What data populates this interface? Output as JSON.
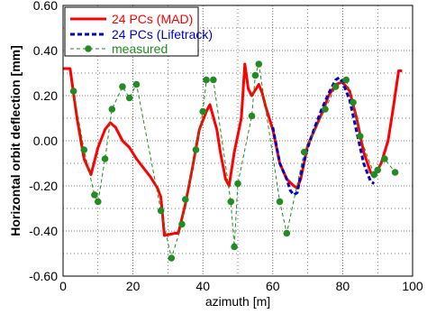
{
  "chart_data": {
    "type": "line",
    "xlabel": "azimuth [m]",
    "ylabel": "Horizontal orbit deflection [mm]",
    "xlim": [
      0,
      100
    ],
    "ylim": [
      -0.6,
      0.6
    ],
    "x_ticks": [
      "0",
      "20",
      "40",
      "60",
      "80",
      "100"
    ],
    "y_ticks": [
      "0.60",
      "0.40",
      "0.20",
      "0.00",
      "-0.20",
      "-0.40",
      "-0.60"
    ],
    "x_tick_values": [
      0,
      20,
      40,
      60,
      80,
      100
    ],
    "y_tick_values": [
      0.6,
      0.4,
      0.2,
      0.0,
      -0.2,
      -0.4,
      -0.6
    ],
    "grid": "dotted",
    "legend_position": "top-left",
    "series": [
      {
        "name": "24 PCs (MAD)",
        "color": "#ff0000",
        "style": "solid",
        "points": [
          [
            0,
            0.32
          ],
          [
            2,
            0.32
          ],
          [
            4,
            0.1
          ],
          [
            6,
            -0.08
          ],
          [
            8,
            -0.15
          ],
          [
            10,
            -0.03
          ],
          [
            12,
            0.05
          ],
          [
            13.5,
            0.08
          ],
          [
            15,
            0.06
          ],
          [
            17,
            0.0
          ],
          [
            19,
            -0.03
          ],
          [
            21,
            -0.08
          ],
          [
            23,
            -0.12
          ],
          [
            25,
            -0.16
          ],
          [
            27,
            -0.21
          ],
          [
            28,
            -0.25
          ],
          [
            29,
            -0.42
          ],
          [
            32,
            -0.41
          ],
          [
            33,
            -0.41
          ],
          [
            35,
            -0.28
          ],
          [
            37,
            -0.12
          ],
          [
            39,
            0.05
          ],
          [
            41,
            0.13
          ],
          [
            42,
            0.16
          ],
          [
            44,
            0.05
          ],
          [
            45,
            -0.05
          ],
          [
            46.5,
            -0.17
          ],
          [
            47.5,
            -0.2
          ],
          [
            49,
            -0.05
          ],
          [
            51,
            0.1
          ],
          [
            52,
            0.34
          ],
          [
            53,
            0.23
          ],
          [
            54,
            0.2
          ],
          [
            56,
            0.25
          ],
          [
            57,
            0.21
          ],
          [
            58,
            0.15
          ],
          [
            60,
            0.05
          ],
          [
            62,
            -0.1
          ],
          [
            64,
            -0.17
          ],
          [
            66,
            -0.2
          ],
          [
            67,
            -0.21
          ],
          [
            68,
            -0.17
          ],
          [
            70,
            -0.02
          ],
          [
            72,
            0.05
          ],
          [
            74,
            0.12
          ],
          [
            76,
            0.2
          ],
          [
            78,
            0.25
          ],
          [
            80,
            0.26
          ],
          [
            82,
            0.22
          ],
          [
            84,
            0.1
          ],
          [
            86,
            -0.05
          ],
          [
            88,
            -0.14
          ],
          [
            89,
            -0.16
          ],
          [
            91,
            -0.1
          ],
          [
            93,
            0.0
          ],
          [
            94.5,
            0.15
          ],
          [
            96,
            0.31
          ],
          [
            97,
            0.31
          ]
        ]
      },
      {
        "name": "24 PCs (Lifetrack)",
        "color": "#0000cc",
        "style": "dashed",
        "points": [
          [
            60,
            0.06
          ],
          [
            62,
            -0.1
          ],
          [
            64,
            -0.17
          ],
          [
            65,
            -0.22
          ],
          [
            66,
            -0.24
          ],
          [
            67,
            -0.23
          ],
          [
            68,
            -0.15
          ],
          [
            70,
            -0.03
          ],
          [
            72,
            0.06
          ],
          [
            74,
            0.14
          ],
          [
            76,
            0.21
          ],
          [
            78,
            0.27
          ],
          [
            79,
            0.28
          ],
          [
            80,
            0.26
          ],
          [
            82,
            0.18
          ],
          [
            84,
            0.04
          ],
          [
            86,
            -0.1
          ],
          [
            88,
            -0.18
          ],
          [
            89,
            -0.19
          ]
        ]
      },
      {
        "name": "measured",
        "color": "#228b22",
        "style": "dashed-markers",
        "points": [
          [
            3,
            0.22
          ],
          [
            6,
            -0.04
          ],
          [
            9,
            -0.24
          ],
          [
            10,
            -0.27
          ],
          [
            12,
            -0.08
          ],
          [
            14,
            0.14
          ],
          [
            17,
            0.24
          ],
          [
            19,
            0.19
          ],
          [
            21,
            0.25
          ],
          [
            28,
            -0.31
          ],
          [
            31,
            -0.52
          ],
          [
            34,
            -0.37
          ],
          [
            35,
            -0.26
          ],
          [
            38,
            -0.04
          ],
          [
            40,
            0.13
          ],
          [
            41,
            0.27
          ],
          [
            43,
            0.27
          ],
          [
            48,
            -0.27
          ],
          [
            49,
            -0.47
          ],
          [
            50,
            -0.19
          ],
          [
            54,
            0.11
          ],
          [
            55,
            0.29
          ],
          [
            56,
            0.34
          ],
          [
            62,
            -0.27
          ],
          [
            64,
            -0.41
          ],
          [
            69,
            -0.05
          ],
          [
            75,
            0.14
          ],
          [
            78,
            0.24
          ],
          [
            81,
            0.27
          ],
          [
            83,
            0.17
          ],
          [
            85,
            0.02
          ],
          [
            89,
            -0.15
          ],
          [
            90,
            -0.13
          ],
          [
            92,
            -0.08
          ],
          [
            95,
            -0.14
          ]
        ]
      }
    ]
  }
}
